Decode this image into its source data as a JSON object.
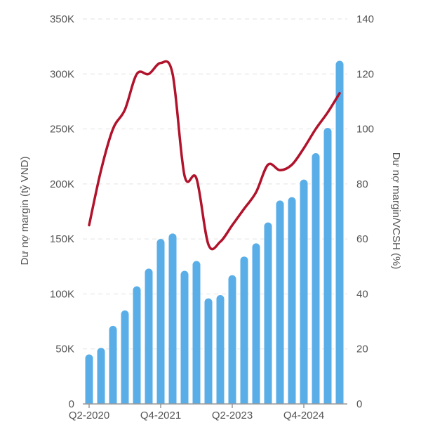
{
  "chart_data": {
    "type": "bar+line",
    "title": "",
    "categories": [
      "Q2-2020",
      "Q3-2020",
      "Q4-2020",
      "Q1-2021",
      "Q2-2021",
      "Q3-2021",
      "Q4-2021",
      "Q1-2022",
      "Q2-2022",
      "Q3-2022",
      "Q4-2022",
      "Q1-2023",
      "Q2-2023",
      "Q3-2023",
      "Q4-2023",
      "Q1-2024",
      "Q2-2024",
      "Q3-2024",
      "Q4-2024",
      "Q1-2025",
      "Q2-2025",
      "Q3-2025"
    ],
    "xtick_labels": [
      "Q2-2020",
      "Q4-2021",
      "Q2-2023",
      "Q4-2024"
    ],
    "series": [
      {
        "type": "bar",
        "axis": "left",
        "color": "#5aaee8",
        "values": [
          45,
          51,
          71,
          85,
          107,
          123,
          150,
          155,
          121,
          130,
          96,
          99,
          117,
          134,
          146,
          165,
          185,
          188,
          204,
          228,
          251,
          312
        ]
      },
      {
        "type": "line",
        "axis": "right",
        "color": "#b0132b",
        "smooth": true,
        "values": [
          65,
          85,
          100,
          107,
          120,
          120,
          124,
          120,
          83,
          82,
          58,
          59,
          65,
          71,
          77,
          87,
          85,
          87,
          93,
          100,
          106,
          113
        ]
      }
    ],
    "ylabel_left": "Dư nợ margin (tỷ VND)",
    "ylabel_right": "Dư nợ margin/VCSH (%)",
    "ylim_left": [
      0,
      350
    ],
    "ylim_right": [
      0,
      140
    ],
    "yticks_left": [
      "0",
      "50K",
      "100K",
      "150K",
      "200K",
      "250K",
      "300K",
      "350K"
    ],
    "yticks_right": [
      "0",
      "20",
      "40",
      "60",
      "80",
      "100",
      "120",
      "140"
    ],
    "grid": true
  }
}
